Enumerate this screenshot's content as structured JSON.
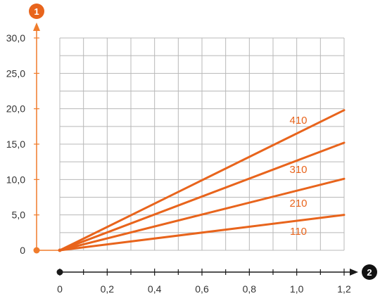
{
  "chart_data": {
    "type": "line",
    "x": [
      0,
      1.2
    ],
    "series": [
      {
        "name": "410",
        "values": [
          0,
          19.8
        ]
      },
      {
        "name": "310",
        "values": [
          0,
          15.2
        ]
      },
      {
        "name": "210",
        "values": [
          0,
          10.1
        ]
      },
      {
        "name": "110",
        "values": [
          0,
          5.0
        ]
      }
    ],
    "xlim": [
      0,
      1.2
    ],
    "ylim": [
      0,
      30
    ],
    "x_ticks": [
      "0",
      "0,2",
      "0,4",
      "0,6",
      "0,8",
      "1,0",
      "1,2"
    ],
    "y_ticks": [
      "0",
      "5,0",
      "10,0",
      "15,0",
      "20,0",
      "25,0",
      "30,0"
    ],
    "y_axis_badge": "1",
    "x_axis_badge": "2",
    "grid": true,
    "colors": {
      "series": "#e8641c",
      "y_axis": "#f07c2c",
      "x_axis": "#1a1a1a",
      "grid": "#b8b8b8",
      "badge_y": "#e8641c",
      "badge_x": "#111111"
    }
  }
}
